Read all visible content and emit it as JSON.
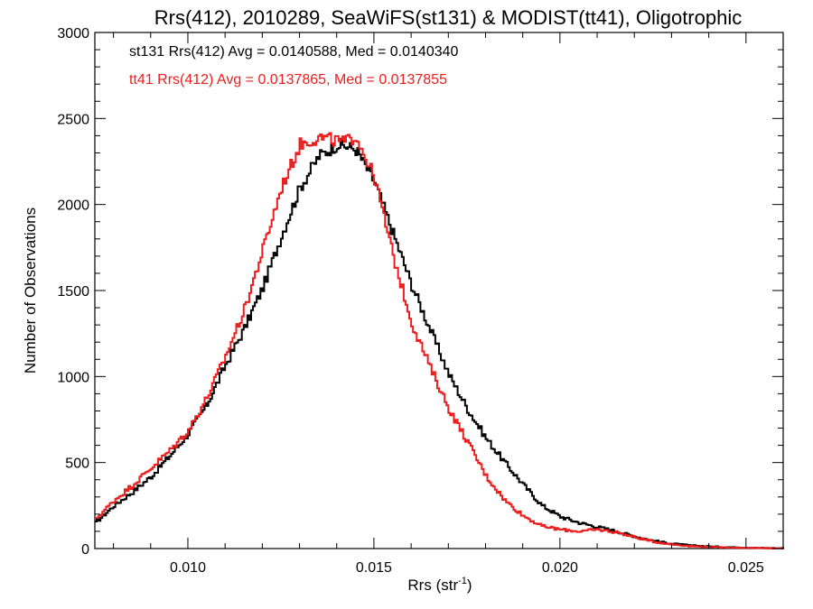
{
  "chart_data": {
    "type": "line",
    "title": "Rrs(412), 2010289, SeaWiFS(st131) & MODIST(tt41), Oligotrophic",
    "xlabel": "Rrs (str",
    "xlabel_sup": "-1",
    "xlabel_end": ")",
    "ylabel": "Number of Observations",
    "xlim": [
      0.0075,
      0.026
    ],
    "ylim": [
      0,
      3000
    ],
    "xticks": [
      0.01,
      0.015,
      0.02,
      0.025
    ],
    "xtick_labels": [
      "0.010",
      "0.015",
      "0.020",
      "0.025"
    ],
    "yticks": [
      0,
      500,
      1000,
      1500,
      2000,
      2500,
      3000
    ],
    "ytick_labels": [
      "0",
      "500",
      "1000",
      "1500",
      "2000",
      "2500",
      "3000"
    ],
    "grid": false,
    "legend_placement": "top-left",
    "series": [
      {
        "name": "st131",
        "legend_text": "st131 Rrs(412) Avg = 0.0140588, Med = 0.0140340",
        "color": "#000000",
        "x": [
          0.0075,
          0.008,
          0.0085,
          0.009,
          0.0095,
          0.01,
          0.0105,
          0.011,
          0.0115,
          0.012,
          0.0125,
          0.013,
          0.0135,
          0.014,
          0.0142,
          0.0145,
          0.015,
          0.0155,
          0.016,
          0.0165,
          0.017,
          0.0175,
          0.018,
          0.0185,
          0.019,
          0.0195,
          0.02,
          0.0205,
          0.021,
          0.0215,
          0.022,
          0.0225,
          0.023,
          0.0235,
          0.024,
          0.0245,
          0.025,
          0.0255,
          0.026
        ],
        "y": [
          150,
          250,
          330,
          420,
          540,
          670,
          840,
          1070,
          1280,
          1520,
          1820,
          2100,
          2280,
          2350,
          2340,
          2320,
          2130,
          1830,
          1530,
          1270,
          1010,
          810,
          640,
          500,
          370,
          250,
          185,
          150,
          125,
          100,
          70,
          45,
          28,
          18,
          12,
          8,
          5,
          3,
          2
        ]
      },
      {
        "name": "tt41",
        "legend_text": "tt41 Rrs(412) Avg = 0.0137865, Med = 0.0137855",
        "color": "#ee1c1c",
        "x": [
          0.0075,
          0.008,
          0.0085,
          0.009,
          0.0095,
          0.01,
          0.0105,
          0.011,
          0.0115,
          0.012,
          0.0125,
          0.013,
          0.0135,
          0.014,
          0.0142,
          0.0145,
          0.015,
          0.0155,
          0.016,
          0.0165,
          0.017,
          0.0175,
          0.018,
          0.0185,
          0.019,
          0.0195,
          0.02,
          0.0205,
          0.021,
          0.0215,
          0.022,
          0.0225,
          0.023,
          0.0235,
          0.024,
          0.0245,
          0.025,
          0.0255,
          0.026
        ],
        "y": [
          170,
          280,
          370,
          470,
          570,
          690,
          880,
          1120,
          1390,
          1740,
          2100,
          2350,
          2390,
          2370,
          2360,
          2400,
          2150,
          1700,
          1310,
          1050,
          810,
          620,
          420,
          280,
          190,
          130,
          110,
          100,
          110,
          95,
          65,
          40,
          24,
          14,
          9,
          6,
          4,
          2,
          1
        ]
      }
    ]
  }
}
